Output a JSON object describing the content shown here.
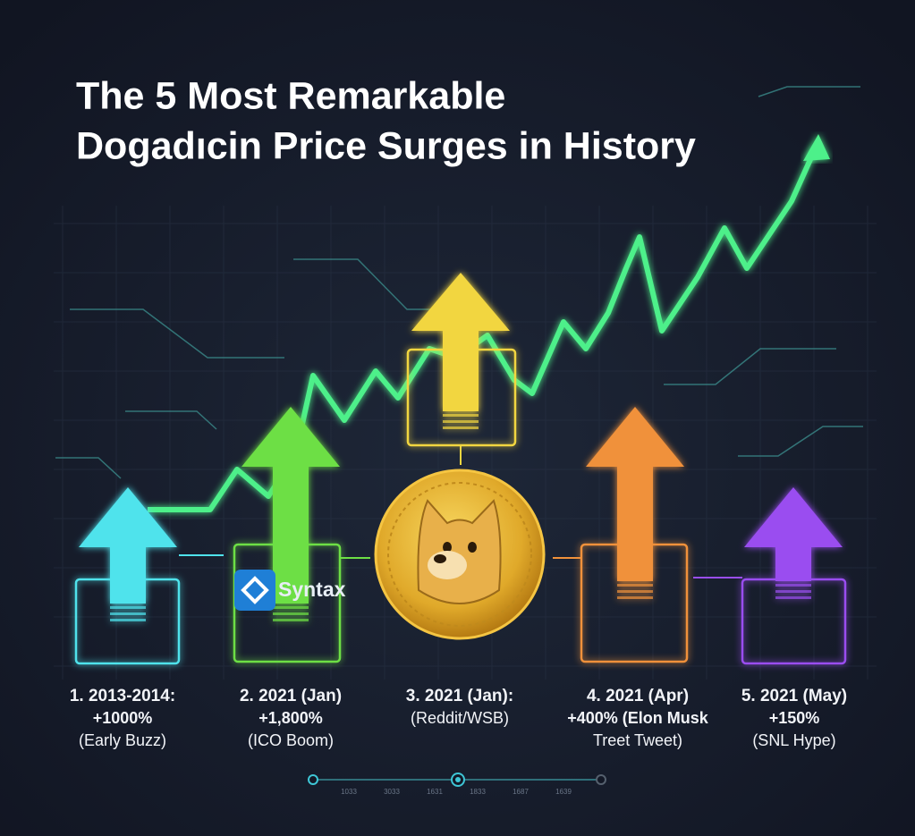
{
  "title": {
    "lines": [
      "The 5 Most Remarkable",
      "Dogadıcin Price Surges in History"
    ]
  },
  "logo": {
    "label": "Syntax"
  },
  "items": [
    {
      "lines": [
        "1. 2013-2014:",
        "+1000%",
        "(Early Buzz)"
      ]
    },
    {
      "lines": [
        "2. 2021 (Jan)",
        "+1,800%",
        "(ICO Boom)"
      ]
    },
    {
      "lines": [
        "3. 2021 (Jan):",
        "(Reddit/WSB)"
      ]
    },
    {
      "lines": [
        "4. 2021 (Apr)",
        "+400% (Elon Musk",
        "Treet Tweet)"
      ]
    },
    {
      "lines": [
        "5. 2021 (May)",
        "+150%",
        "(SNL Hype)"
      ]
    }
  ],
  "timeline": {
    "labels": [
      "1033",
      "3033",
      "1631",
      "1833",
      "1687",
      "1639"
    ]
  }
}
